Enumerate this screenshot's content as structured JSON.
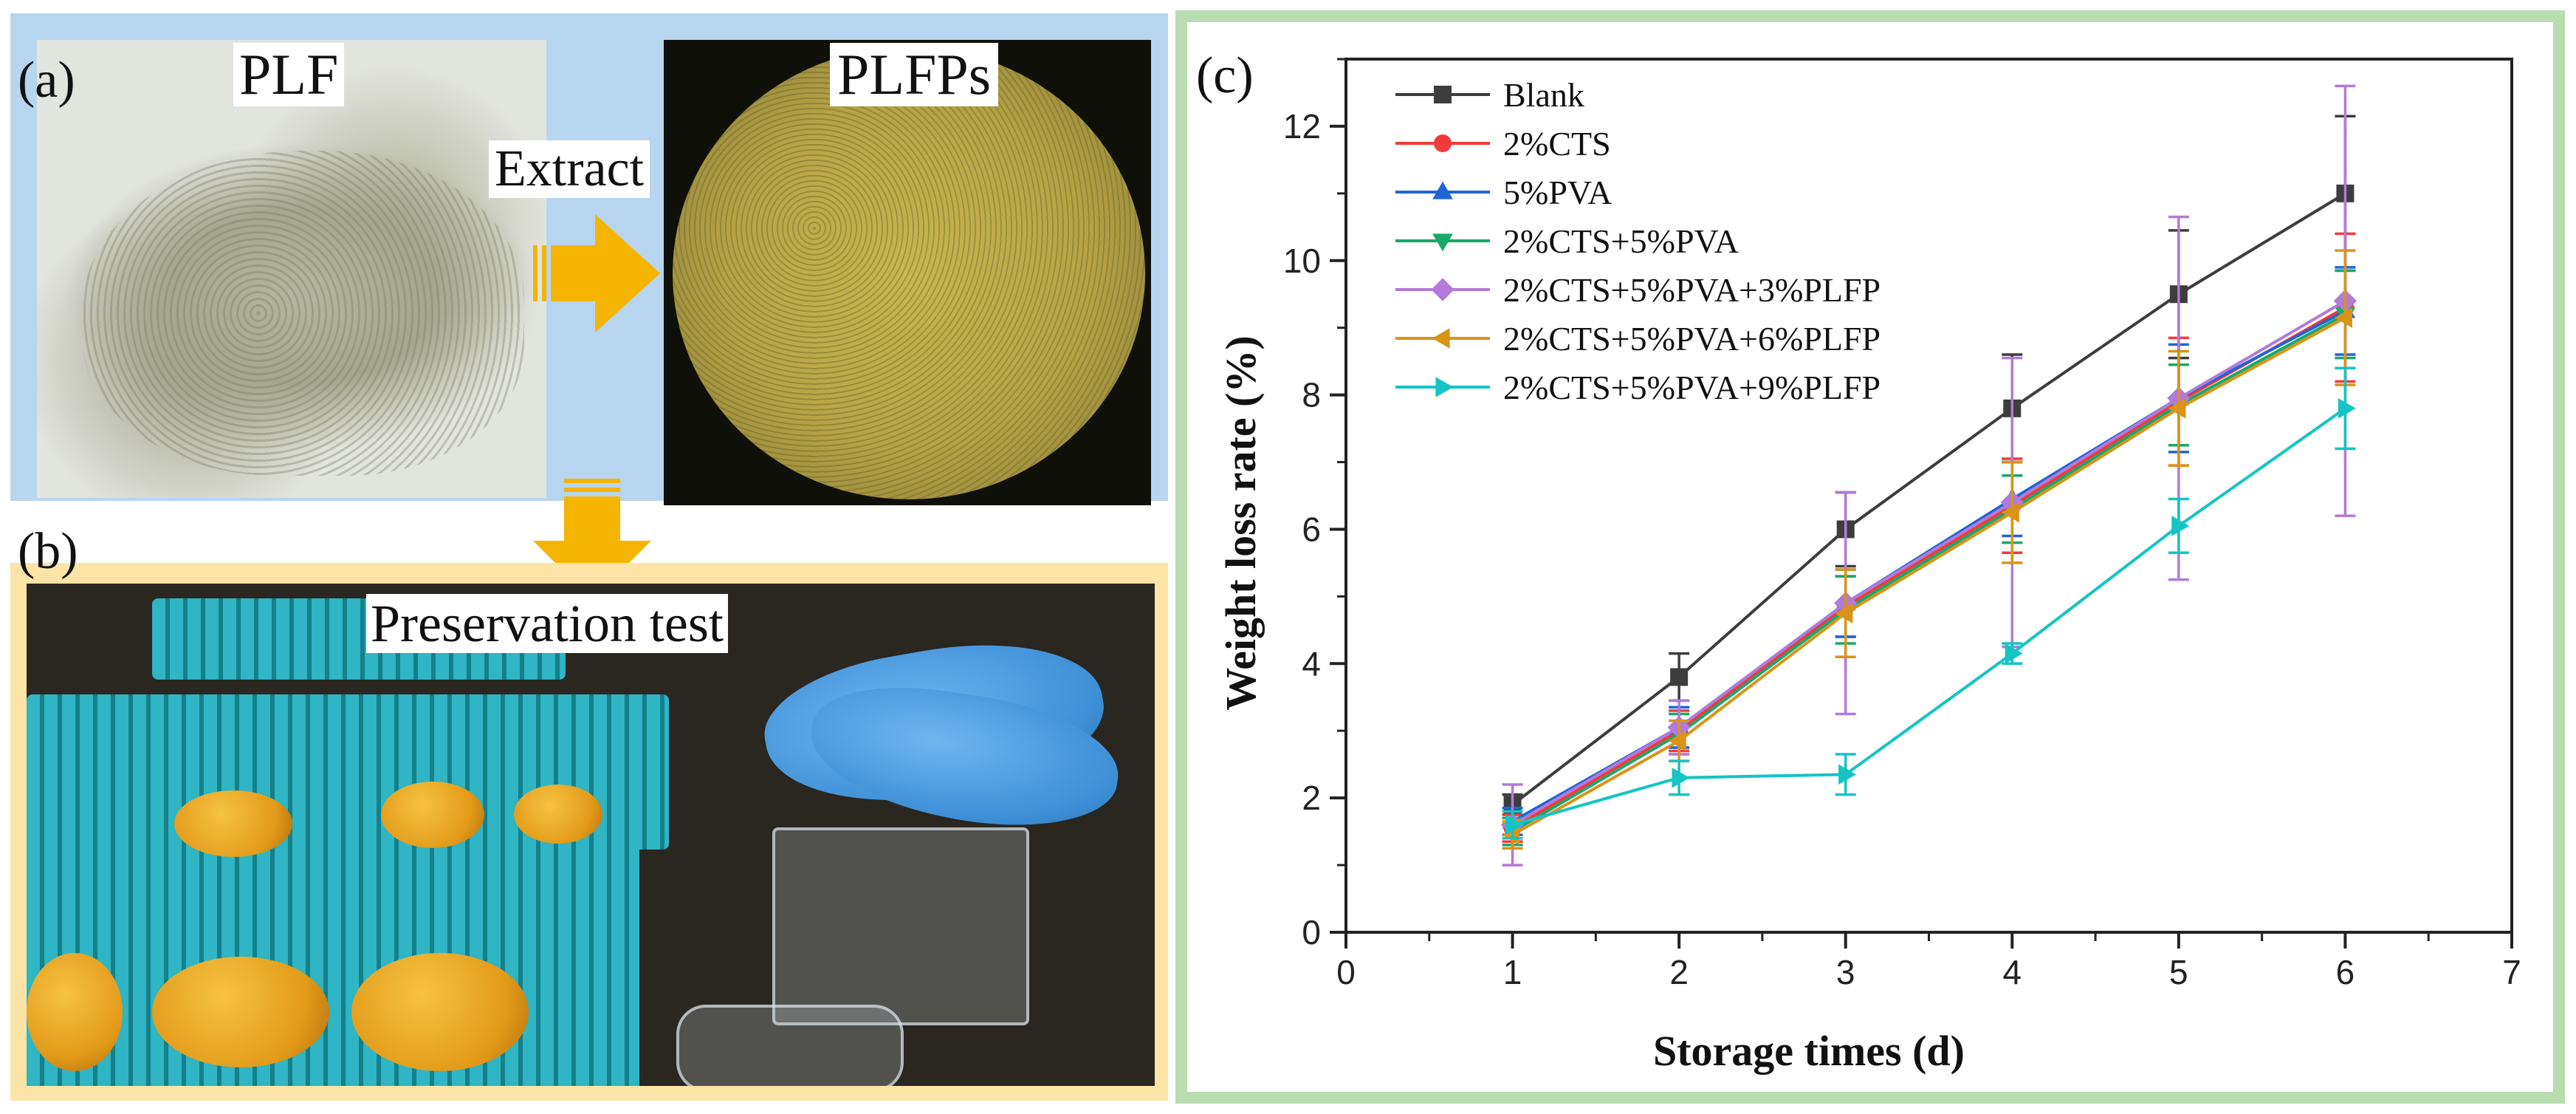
{
  "panel_a": {
    "letter": "(a)",
    "left_label": "PLF",
    "right_label": "PLFPs",
    "arrow_label": "Extract"
  },
  "panel_b": {
    "letter": "(b)",
    "arrow_label": "Preservation test"
  },
  "panel_c": {
    "letter": "(c)"
  },
  "colors": {
    "panel_a_bg": "#b7d5ee",
    "panel_b_bg": "#fbe4a5",
    "panel_c_border": "#b9dcb0",
    "arrow": "#f5b400"
  },
  "chart_data": {
    "type": "line",
    "xlabel": "Storage times (d)",
    "ylabel": "Weight loss rate (%)",
    "xlim": [
      0,
      7
    ],
    "ylim": [
      0,
      13
    ],
    "xticks": [
      0,
      1,
      2,
      3,
      4,
      5,
      6,
      7
    ],
    "yticks": [
      0,
      2,
      4,
      6,
      8,
      10,
      12
    ],
    "legend_position": "top-left",
    "grid": false,
    "x": [
      1,
      2,
      3,
      4,
      5,
      6
    ],
    "series": [
      {
        "name": "Blank",
        "color": "#3d3d3d",
        "marker": "square",
        "values": [
          1.9,
          3.8,
          6.0,
          7.8,
          9.5,
          11.0
        ],
        "errors": [
          0.15,
          0.35,
          0.55,
          0.8,
          0.95,
          1.15
        ]
      },
      {
        "name": "2%CTS",
        "color": "#f03a3a",
        "marker": "circle",
        "values": [
          1.55,
          3.0,
          4.85,
          6.35,
          7.9,
          9.3
        ],
        "errors": [
          0.2,
          0.3,
          0.45,
          0.7,
          0.95,
          1.1
        ]
      },
      {
        "name": "5%PVA",
        "color": "#1f64d6",
        "marker": "triangle-up",
        "values": [
          1.65,
          3.05,
          4.9,
          6.45,
          7.95,
          9.25
        ],
        "errors": [
          0.2,
          0.3,
          0.5,
          0.55,
          0.8,
          0.65
        ]
      },
      {
        "name": "2%CTS+5%PVA",
        "color": "#18a86a",
        "marker": "triangle-down",
        "values": [
          1.5,
          2.95,
          4.8,
          6.3,
          7.85,
          9.2
        ],
        "errors": [
          0.2,
          0.3,
          0.5,
          0.5,
          0.6,
          0.65
        ]
      },
      {
        "name": "2%CTS+5%PVA+3%PLFP",
        "color": "#b27ad9",
        "marker": "diamond",
        "values": [
          1.6,
          3.05,
          4.9,
          6.4,
          7.95,
          9.4
        ],
        "errors": [
          0.6,
          0.4,
          1.65,
          2.15,
          2.7,
          3.2
        ]
      },
      {
        "name": "2%CTS+5%PVA+6%PLFP",
        "color": "#d99418",
        "marker": "triangle-left",
        "values": [
          1.45,
          2.85,
          4.75,
          6.25,
          7.8,
          9.15
        ],
        "errors": [
          0.2,
          0.3,
          0.65,
          0.75,
          0.85,
          1.0
        ]
      },
      {
        "name": "2%CTS+5%PVA+9%PLFP",
        "color": "#15c4c4",
        "marker": "triangle-right",
        "values": [
          1.6,
          2.3,
          2.35,
          4.15,
          6.05,
          7.8
        ],
        "errors": [
          0.2,
          0.25,
          0.3,
          0.15,
          0.4,
          0.6
        ]
      }
    ]
  }
}
